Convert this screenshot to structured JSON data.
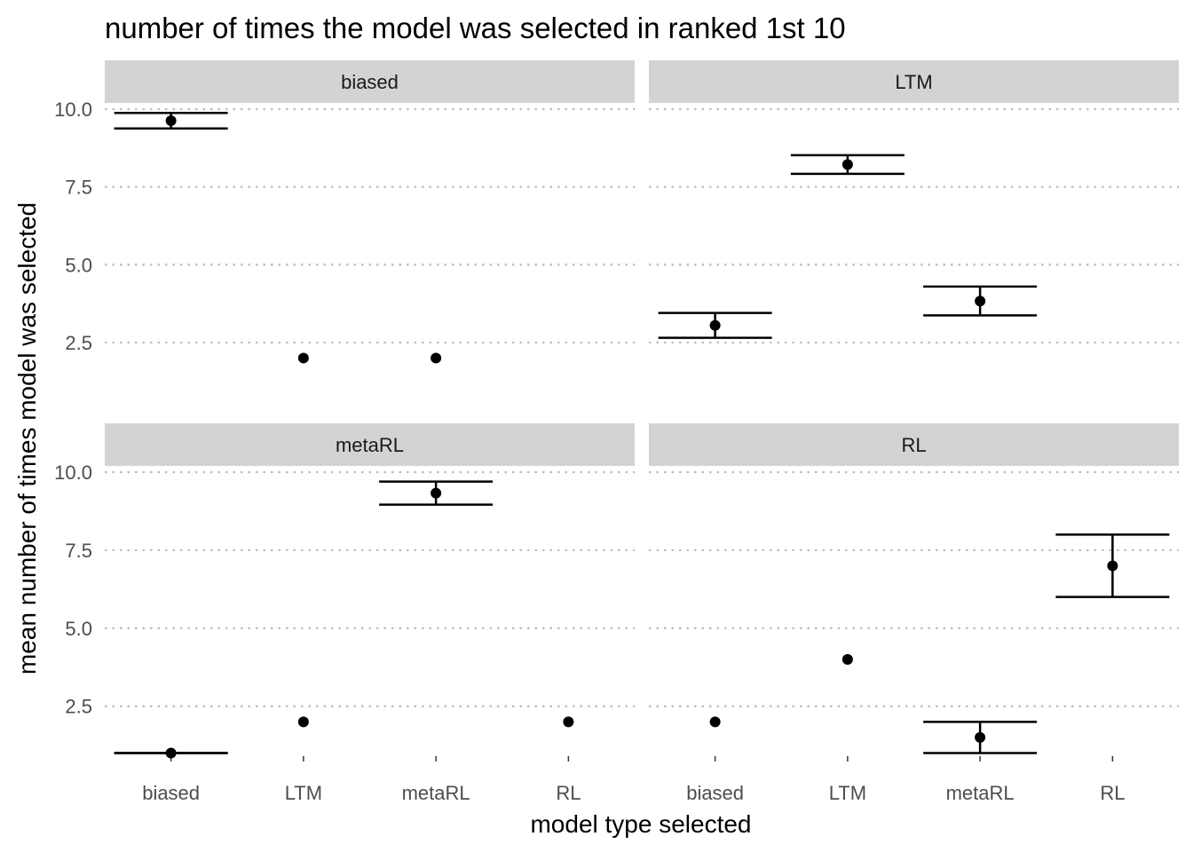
{
  "chart_data": {
    "type": "scatter",
    "title": "number of times the model was selected in ranked 1st 10",
    "xlabel": "model type selected",
    "ylabel": "mean number of times model was selected",
    "categories": [
      "biased",
      "LTM",
      "metaRL",
      "RL"
    ],
    "y_ticks": [
      2.5,
      5.0,
      7.5,
      10.0
    ],
    "y_tick_labels": [
      "2.5",
      "5.0",
      "7.5",
      "10.0"
    ],
    "ylim": [
      0.9,
      10.2
    ],
    "grid": "horizontal dotted",
    "facets": [
      {
        "label": "biased",
        "points": [
          {
            "category": "biased",
            "mean": 9.63,
            "lower": 9.38,
            "upper": 9.88
          },
          {
            "category": "LTM",
            "mean": 2.0,
            "lower": null,
            "upper": null
          },
          {
            "category": "metaRL",
            "mean": 2.0,
            "lower": null,
            "upper": null
          }
        ]
      },
      {
        "label": "LTM",
        "points": [
          {
            "category": "biased",
            "mean": 3.05,
            "lower": 2.65,
            "upper": 3.45
          },
          {
            "category": "LTM",
            "mean": 8.22,
            "lower": 7.92,
            "upper": 8.52
          },
          {
            "category": "metaRL",
            "mean": 3.83,
            "lower": 3.37,
            "upper": 4.3
          }
        ]
      },
      {
        "label": "metaRL",
        "points": [
          {
            "category": "biased",
            "mean": 1.0,
            "lower": 1.0,
            "upper": 1.0
          },
          {
            "category": "LTM",
            "mean": 2.0,
            "lower": null,
            "upper": null
          },
          {
            "category": "metaRL",
            "mean": 9.33,
            "lower": 8.96,
            "upper": 9.7
          },
          {
            "category": "RL",
            "mean": 2.0,
            "lower": null,
            "upper": null
          }
        ]
      },
      {
        "label": "RL",
        "points": [
          {
            "category": "biased",
            "mean": 2.0,
            "lower": null,
            "upper": null
          },
          {
            "category": "LTM",
            "mean": 4.0,
            "lower": null,
            "upper": null
          },
          {
            "category": "metaRL",
            "mean": 1.5,
            "lower": 1.0,
            "upper": 2.0
          },
          {
            "category": "RL",
            "mean": 7.0,
            "lower": 6.0,
            "upper": 8.0
          }
        ]
      }
    ]
  }
}
